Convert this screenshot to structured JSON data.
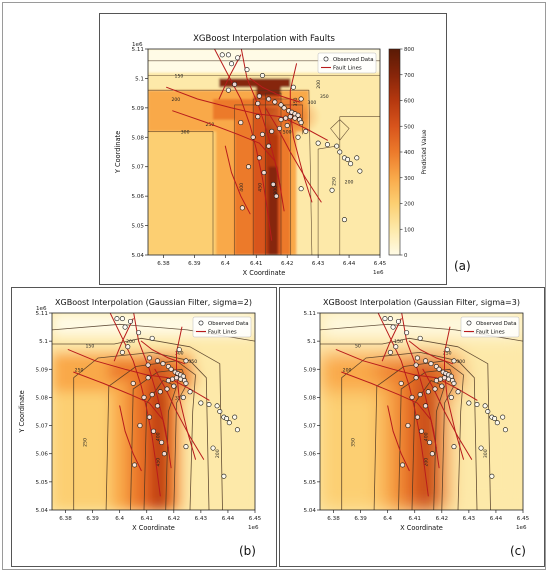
{
  "panel_letters": {
    "a": "(a)",
    "b": "(b)",
    "c": "(c)"
  },
  "chart_data": [
    {
      "type": "heatmap",
      "panel": "(a)",
      "title": "XGBoost Interpolation with Faults",
      "xlabel": "X Coordinate",
      "ylabel": "Y Coordinate",
      "x_offset_label": "1e6",
      "y_offset_label": "1e6",
      "xlim": [
        6.375,
        6.45
      ],
      "ylim": [
        5.04,
        5.11
      ],
      "x_ticks": [
        6.38,
        6.39,
        6.4,
        6.41,
        6.42,
        6.43,
        6.44,
        6.45
      ],
      "y_ticks": [
        5.04,
        5.05,
        5.06,
        5.07,
        5.08,
        5.09,
        5.1,
        5.11
      ],
      "colorbar": {
        "label": "Predicted Value",
        "ticks": [
          0,
          100,
          200,
          300,
          400,
          500,
          600,
          700,
          800
        ],
        "range": [
          0,
          800
        ]
      },
      "legend": [
        "Observed Data",
        "Fault Lines"
      ],
      "legend_position": "top-right",
      "contour_labels": [
        "150",
        "200",
        "250",
        "300",
        "350",
        "400",
        "450",
        "500",
        "250",
        "300",
        "200",
        "350",
        "300",
        "200"
      ]
    },
    {
      "type": "heatmap",
      "panel": "(b)",
      "title": "XGBoost Interpolation (Gaussian Filter, sigma=2)",
      "xlabel": "X Coordinate",
      "ylabel": "Y Coordinate",
      "x_offset_label": "1e6",
      "y_offset_label": "1e6",
      "xlim": [
        6.375,
        6.45
      ],
      "ylim": [
        5.04,
        5.11
      ],
      "x_ticks": [
        6.38,
        6.39,
        6.4,
        6.41,
        6.42,
        6.43,
        6.44,
        6.45
      ],
      "y_ticks": [
        5.04,
        5.05,
        5.06,
        5.07,
        5.08,
        5.09,
        5.1,
        5.11
      ],
      "legend": [
        "Observed Data",
        "Fault Lines"
      ],
      "legend_position": "top-right",
      "contour_labels": [
        "150",
        "200",
        "250",
        "300",
        "350",
        "250",
        "400",
        "450",
        "200",
        "350"
      ]
    },
    {
      "type": "heatmap",
      "panel": "(c)",
      "title": "XGBoost Interpolation (Gaussian Filter, sigma=3)",
      "xlabel": "X Coordinate",
      "ylabel": "",
      "x_offset_label": "1e6",
      "y_offset_label": "",
      "xlim": [
        6.375,
        6.45
      ],
      "ylim": [
        5.04,
        5.11
      ],
      "x_ticks": [
        6.38,
        6.39,
        6.4,
        6.41,
        6.42,
        6.43,
        6.44,
        6.45
      ],
      "y_ticks": [
        5.04,
        5.05,
        5.06,
        5.07,
        5.08,
        5.09,
        5.1,
        5.11
      ],
      "legend": [
        "Observed Data",
        "Fault Lines"
      ],
      "legend_position": "top-right",
      "contour_labels": [
        "50",
        "150",
        "200",
        "250",
        "300",
        "350",
        "400",
        "200",
        "300"
      ]
    }
  ],
  "observed_points": [
    [
      6.399,
      5.108
    ],
    [
      6.401,
      5.108
    ],
    [
      6.404,
      5.107
    ],
    [
      6.402,
      5.105
    ],
    [
      6.407,
      5.103
    ],
    [
      6.412,
      5.101
    ],
    [
      6.403,
      5.098
    ],
    [
      6.401,
      5.096
    ],
    [
      6.411,
      5.094
    ],
    [
      6.414,
      5.093
    ],
    [
      6.416,
      5.092
    ],
    [
      6.418,
      5.091
    ],
    [
      6.419,
      5.09
    ],
    [
      6.4205,
      5.089
    ],
    [
      6.4215,
      5.0885
    ],
    [
      6.4225,
      5.088
    ],
    [
      6.4235,
      5.0875
    ],
    [
      6.421,
      5.087
    ],
    [
      6.4195,
      5.0865
    ],
    [
      6.418,
      5.086
    ],
    [
      6.4225,
      5.0865
    ],
    [
      6.424,
      5.086
    ],
    [
      6.4245,
      5.085
    ],
    [
      6.42,
      5.084
    ],
    [
      6.4175,
      5.083
    ],
    [
      6.415,
      5.082
    ],
    [
      6.412,
      5.081
    ],
    [
      6.409,
      5.08
    ],
    [
      6.4235,
      5.08
    ],
    [
      6.422,
      5.097
    ],
    [
      6.4245,
      5.093
    ],
    [
      6.426,
      5.082
    ],
    [
      6.43,
      5.078
    ],
    [
      6.433,
      5.0775
    ],
    [
      6.436,
      5.077
    ],
    [
      6.437,
      5.075
    ],
    [
      6.4385,
      5.073
    ],
    [
      6.4395,
      5.0725
    ],
    [
      6.4425,
      5.073
    ],
    [
      6.4405,
      5.071
    ],
    [
      6.4435,
      5.0685
    ],
    [
      6.414,
      5.077
    ],
    [
      6.411,
      5.073
    ],
    [
      6.4075,
      5.07
    ],
    [
      6.4125,
      5.068
    ],
    [
      6.4155,
      5.064
    ],
    [
      6.4165,
      5.06
    ],
    [
      6.4055,
      5.056
    ],
    [
      6.4385,
      5.052
    ],
    [
      6.4245,
      5.0625
    ],
    [
      6.4345,
      5.062
    ],
    [
      6.4105,
      5.0915
    ],
    [
      6.4105,
      5.087
    ],
    [
      6.405,
      5.085
    ]
  ],
  "colors": {
    "fault": "#b81c1c",
    "contour": "#4a3420",
    "point_edge": "#111111",
    "point_fill": "#ffffff",
    "cbar_stops": [
      "#fffbe6",
      "#fde9a9",
      "#fccf72",
      "#f9a94a",
      "#ec7a2b",
      "#d8541c",
      "#b5380f",
      "#86250a",
      "#5a1a05"
    ]
  }
}
